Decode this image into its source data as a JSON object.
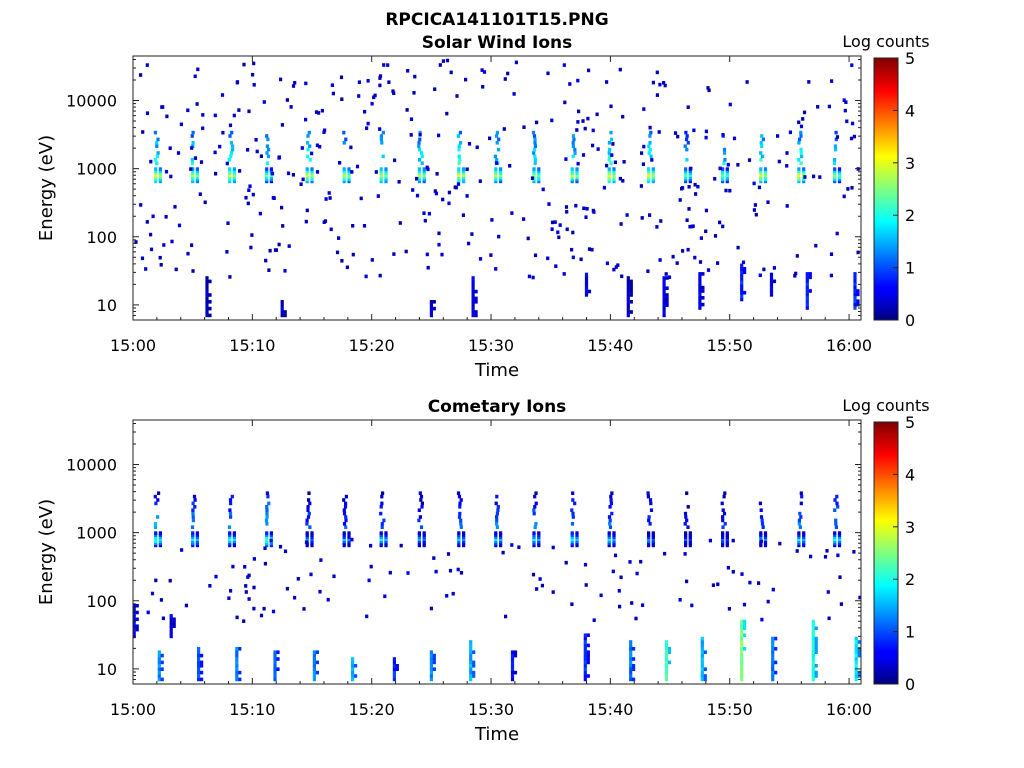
{
  "figure": {
    "title": "RPCICA141101T15.PNG"
  },
  "chart_data": [
    {
      "type": "heatmap",
      "title": "Solar Wind Ions",
      "xlabel": "Time",
      "ylabel": "Energy (eV)",
      "x_ticks": [
        "15:00",
        "15:10",
        "15:20",
        "15:30",
        "15:40",
        "15:50",
        "16:00"
      ],
      "xlim": [
        "15:00",
        "16:01"
      ],
      "y_scale": "log",
      "y_ticks": [
        10,
        100,
        1000,
        10000
      ],
      "ylim": [
        6,
        45000
      ],
      "colorbar": {
        "label": "Log counts",
        "ticks": [
          0,
          1,
          2,
          3,
          4,
          5
        ],
        "range": [
          0,
          5
        ],
        "colormap": "jet"
      },
      "pulses": [
        {
          "time": "15:02.2",
          "peak_log_counts": 3.0
        },
        {
          "time": "15:05.3",
          "peak_log_counts": 2.8
        },
        {
          "time": "15:08.4",
          "peak_log_counts": 3.0
        },
        {
          "time": "15:11.5",
          "peak_log_counts": 2.5
        },
        {
          "time": "15:14.9",
          "peak_log_counts": 3.0
        },
        {
          "time": "15:18.0",
          "peak_log_counts": 2.8
        },
        {
          "time": "15:21.1",
          "peak_log_counts": 2.8
        },
        {
          "time": "15:24.3",
          "peak_log_counts": 2.8
        },
        {
          "time": "15:27.6",
          "peak_log_counts": 3.0
        },
        {
          "time": "15:30.7",
          "peak_log_counts": 2.8
        },
        {
          "time": "15:33.9",
          "peak_log_counts": 2.8
        },
        {
          "time": "15:37.1",
          "peak_log_counts": 2.8
        },
        {
          "time": "15:40.2",
          "peak_log_counts": 3.0
        },
        {
          "time": "15:43.5",
          "peak_log_counts": 3.0
        },
        {
          "time": "15:46.6",
          "peak_log_counts": 2.5
        },
        {
          "time": "15:49.7",
          "peak_log_counts": 2.5
        },
        {
          "time": "15:52.9",
          "peak_log_counts": 3.0
        },
        {
          "time": "15:56.1",
          "peak_log_counts": 3.0
        },
        {
          "time": "15:59.1",
          "peak_log_counts": 2.5
        }
      ],
      "pulse_energy_main_eV": 800,
      "pulse_energy_upper_eV": [
        1200,
        3500
      ],
      "low_energy_bursts": [
        {
          "time": "15:06.2",
          "energy_eV": [
            7,
            25
          ],
          "log_counts": 0.3
        },
        {
          "time": "15:12.5",
          "energy_eV": [
            7,
            12
          ],
          "log_counts": 0.3
        },
        {
          "time": "15:25.0",
          "energy_eV": [
            7,
            12
          ],
          "log_counts": 0.3
        },
        {
          "time": "15:28.5",
          "energy_eV": [
            7,
            25
          ],
          "log_counts": 0.5
        },
        {
          "time": "15:38.0",
          "energy_eV": [
            14,
            30
          ],
          "log_counts": 0.5
        },
        {
          "time": "15:41.5",
          "energy_eV": [
            7,
            25
          ],
          "log_counts": 0.3
        },
        {
          "time": "15:44.5",
          "energy_eV": [
            7,
            25
          ],
          "log_counts": 0.5
        },
        {
          "time": "15:47.5",
          "energy_eV": [
            9,
            30
          ],
          "log_counts": 0.5
        },
        {
          "time": "15:51.0",
          "energy_eV": [
            12,
            40
          ],
          "log_counts": 0.8
        },
        {
          "time": "15:53.5",
          "energy_eV": [
            14,
            30
          ],
          "log_counts": 0.5
        },
        {
          "time": "15:56.5",
          "energy_eV": [
            9,
            30
          ],
          "log_counts": 0.8
        },
        {
          "time": "16:00.5",
          "energy_eV": [
            9,
            30
          ],
          "log_counts": 0.8
        }
      ]
    },
    {
      "type": "heatmap",
      "title": "Cometary Ions",
      "xlabel": "Time",
      "ylabel": "Energy (eV)",
      "x_ticks": [
        "15:00",
        "15:10",
        "15:20",
        "15:30",
        "15:40",
        "15:50",
        "16:00"
      ],
      "xlim": [
        "15:00",
        "16:01"
      ],
      "y_scale": "log",
      "y_ticks": [
        10,
        100,
        1000,
        10000
      ],
      "ylim": [
        6,
        45000
      ],
      "colorbar": {
        "label": "Log counts",
        "ticks": [
          0,
          1,
          2,
          3,
          4,
          5
        ],
        "range": [
          0,
          5
        ],
        "colormap": "jet"
      },
      "pulses": [
        {
          "time": "15:02.2",
          "peak_log_counts": 2.2
        },
        {
          "time": "15:05.3",
          "peak_log_counts": 2.0
        },
        {
          "time": "15:08.4",
          "peak_log_counts": 2.0
        },
        {
          "time": "15:11.5",
          "peak_log_counts": 2.3
        },
        {
          "time": "15:14.9",
          "peak_log_counts": 1.5
        },
        {
          "time": "15:18.0",
          "peak_log_counts": 1.5
        },
        {
          "time": "15:21.1",
          "peak_log_counts": 1.8
        },
        {
          "time": "15:24.3",
          "peak_log_counts": 1.5
        },
        {
          "time": "15:27.6",
          "peak_log_counts": 1.8
        },
        {
          "time": "15:30.7",
          "peak_log_counts": 1.8
        },
        {
          "time": "15:33.9",
          "peak_log_counts": 1.8
        },
        {
          "time": "15:37.1",
          "peak_log_counts": 2.0
        },
        {
          "time": "15:40.2",
          "peak_log_counts": 1.8
        },
        {
          "time": "15:43.5",
          "peak_log_counts": 1.5
        },
        {
          "time": "15:46.6",
          "peak_log_counts": 1.2
        },
        {
          "time": "15:49.7",
          "peak_log_counts": 1.2
        },
        {
          "time": "15:52.9",
          "peak_log_counts": 1.5
        },
        {
          "time": "15:56.1",
          "peak_log_counts": 1.8
        },
        {
          "time": "15:59.1",
          "peak_log_counts": 2.0
        }
      ],
      "pulse_energy_main_eV": 800,
      "pulse_energy_upper_eV": [
        1200,
        4000
      ],
      "low_energy_bursts": [
        {
          "time": "15:00.1",
          "energy_eV": [
            30,
            90
          ],
          "log_counts": 0.6
        },
        {
          "time": "15:03.2",
          "energy_eV": [
            30,
            60
          ],
          "log_counts": 0.5
        },
        {
          "time": "15:02.2",
          "energy_eV": [
            7,
            18
          ],
          "log_counts": 1.3
        },
        {
          "time": "15:05.5",
          "energy_eV": [
            7,
            22
          ],
          "log_counts": 1.0
        },
        {
          "time": "15:08.7",
          "energy_eV": [
            7,
            20
          ],
          "log_counts": 1.2
        },
        {
          "time": "15:11.9",
          "energy_eV": [
            7,
            18
          ],
          "log_counts": 1.0
        },
        {
          "time": "15:15.2",
          "energy_eV": [
            7,
            18
          ],
          "log_counts": 1.3
        },
        {
          "time": "15:18.4",
          "energy_eV": [
            7,
            14
          ],
          "log_counts": 1.5
        },
        {
          "time": "15:21.9",
          "energy_eV": [
            7,
            14
          ],
          "log_counts": 0.8
        },
        {
          "time": "15:25.0",
          "energy_eV": [
            7,
            18
          ],
          "log_counts": 1.3
        },
        {
          "time": "15:28.3",
          "energy_eV": [
            7,
            25
          ],
          "log_counts": 1.5
        },
        {
          "time": "15:31.8",
          "energy_eV": [
            7,
            18
          ],
          "log_counts": 0.6
        },
        {
          "time": "15:37.9",
          "energy_eV": [
            7,
            35
          ],
          "log_counts": 0.8
        },
        {
          "time": "15:41.7",
          "energy_eV": [
            7,
            25
          ],
          "log_counts": 1.2
        },
        {
          "time": "15:44.7",
          "energy_eV": [
            7,
            25
          ],
          "log_counts": 2.2
        },
        {
          "time": "15:47.7",
          "energy_eV": [
            7,
            30
          ],
          "log_counts": 1.5
        },
        {
          "time": "15:51.0",
          "energy_eV": [
            7,
            50
          ],
          "log_counts": 2.5
        },
        {
          "time": "15:53.6",
          "energy_eV": [
            7,
            30
          ],
          "log_counts": 1.2
        },
        {
          "time": "15:57.0",
          "energy_eV": [
            7,
            55
          ],
          "log_counts": 2.0
        },
        {
          "time": "16:00.6",
          "energy_eV": [
            7,
            30
          ],
          "log_counts": 1.8
        }
      ]
    }
  ]
}
